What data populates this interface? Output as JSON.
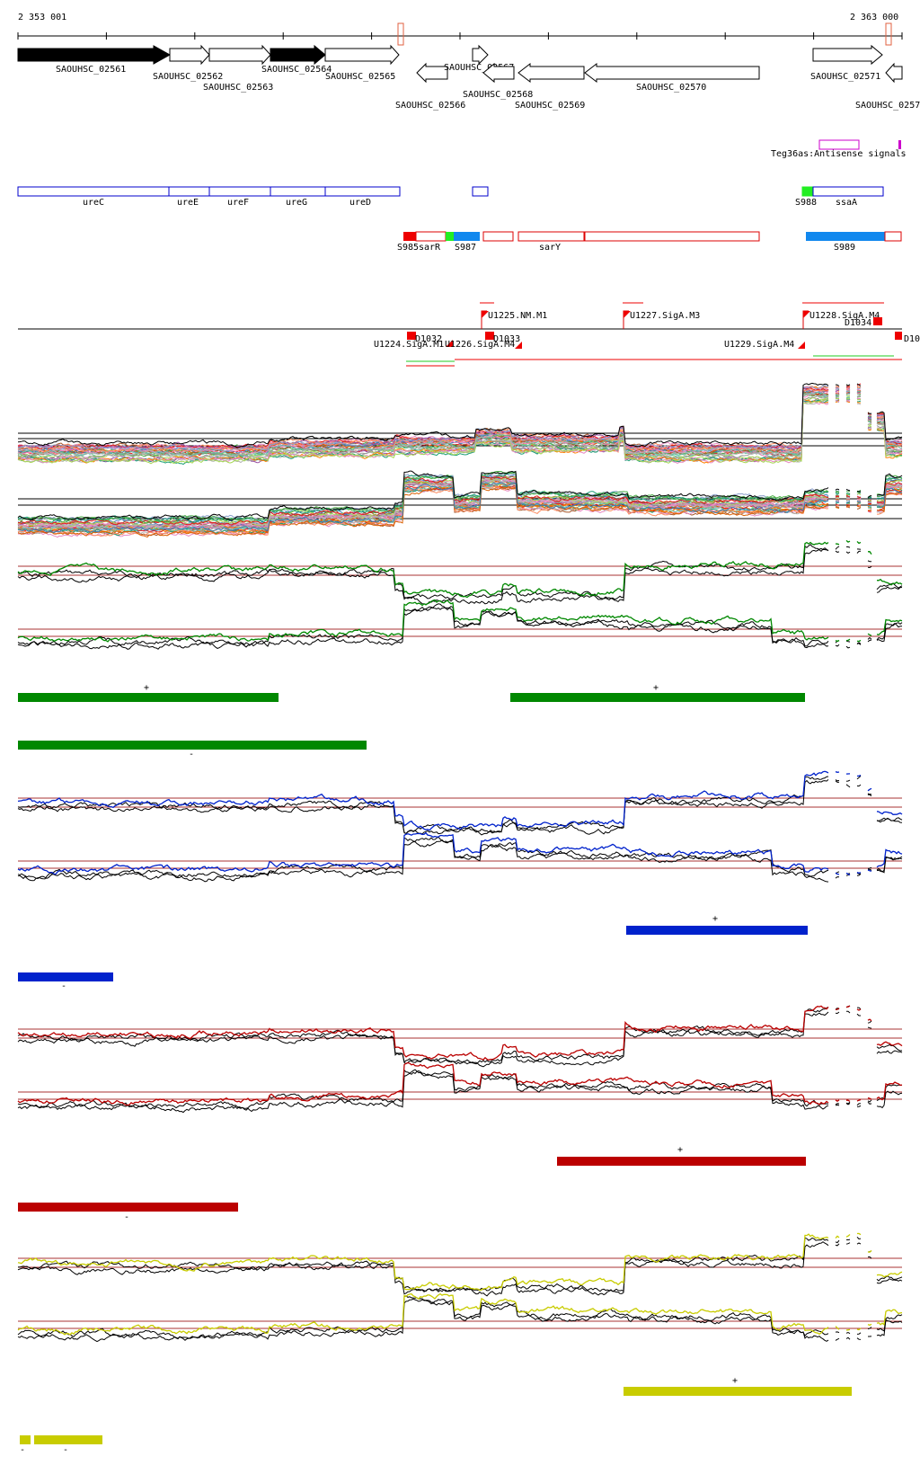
{
  "coordinates": {
    "start": "2 353 001",
    "end": "2 363 000"
  },
  "genes": [
    {
      "id": "SAOUHSC_02561",
      "strand": "+",
      "filled": true
    },
    {
      "id": "SAOUHSC_02562",
      "strand": "+",
      "filled": false
    },
    {
      "id": "SAOUHSC_02563",
      "strand": "+",
      "filled": false
    },
    {
      "id": "SAOUHSC_02564",
      "strand": "+",
      "filled": true
    },
    {
      "id": "SAOUHSC_02565",
      "strand": "+",
      "filled": false
    },
    {
      "id": "SAOUHSC_02566",
      "strand": "-",
      "filled": false
    },
    {
      "id": "SAOUHSC_02567",
      "strand": "+",
      "filled": false
    },
    {
      "id": "SAOUHSC_02568",
      "strand": "-",
      "filled": false
    },
    {
      "id": "SAOUHSC_02569",
      "strand": "-",
      "filled": false
    },
    {
      "id": "SAOUHSC_02570",
      "strand": "-",
      "filled": false
    },
    {
      "id": "SAOUHSC_02571",
      "strand": "+",
      "filled": false
    },
    {
      "id": "SAOUHSC_0257",
      "strand": "-",
      "filled": false
    }
  ],
  "antisense": {
    "label": "Teg36as:Antisense signals"
  },
  "operon_genes": [
    "ureC",
    "ureE",
    "ureF",
    "ureG",
    "ureD",
    "S988",
    "ssaA"
  ],
  "segments": [
    "S985",
    "sarR",
    "S987",
    "sarY",
    "S989"
  ],
  "tss": [
    "U1225.NM.M1",
    "U1227.SigA.M3",
    "U1228.SigA.M4",
    "D1034",
    "D1032",
    "U1224.SigA.M1",
    "U1226.SigA.M4",
    "D1033",
    "U1229.SigA.M4",
    "D10"
  ],
  "strand_marks": {
    "plus": "+",
    "minus": "-"
  },
  "colors": {
    "gene_filled": "#000000",
    "operon_outline": "#0000cc",
    "segment_outline": "#dd0000",
    "segment_red": "#ee0000",
    "segment_green": "#22ee22",
    "segment_blue": "#1188ee",
    "antisense": "#cc00cc",
    "threshold": "#aa3333",
    "green": "#008800",
    "blue": "#0022cc",
    "red": "#bb0000",
    "yellow": "#c8cc00"
  }
}
